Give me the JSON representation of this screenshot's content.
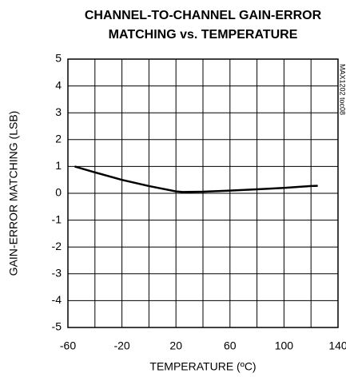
{
  "chart_data": {
    "type": "line",
    "title": [
      "CHANNEL-TO-CHANNEL GAIN-ERROR",
      "MATCHING vs. TEMPERATURE"
    ],
    "xlabel": "TEMPERATURE (ºC)",
    "ylabel": "GAIN-ERROR MATCHING (LSB)",
    "annotation": "MAX1202 toc08",
    "x": [
      -55,
      -40,
      -20,
      0,
      20,
      25,
      40,
      60,
      80,
      100,
      120,
      125
    ],
    "series": [
      {
        "color": "#000000",
        "values": [
          1.0,
          0.78,
          0.5,
          0.27,
          0.07,
          0.05,
          0.06,
          0.1,
          0.15,
          0.2,
          0.27,
          0.28
        ]
      }
    ],
    "xlim": [
      -60,
      140
    ],
    "xticks": [
      -60,
      -20,
      20,
      60,
      100,
      140
    ],
    "x_minor_grid": [
      -40,
      0,
      40,
      80,
      120
    ],
    "ylim": [
      -5,
      5
    ],
    "yticks": [
      -5,
      -4,
      -3,
      -2,
      -1,
      0,
      1,
      2,
      3,
      4,
      5
    ],
    "grid": true
  }
}
